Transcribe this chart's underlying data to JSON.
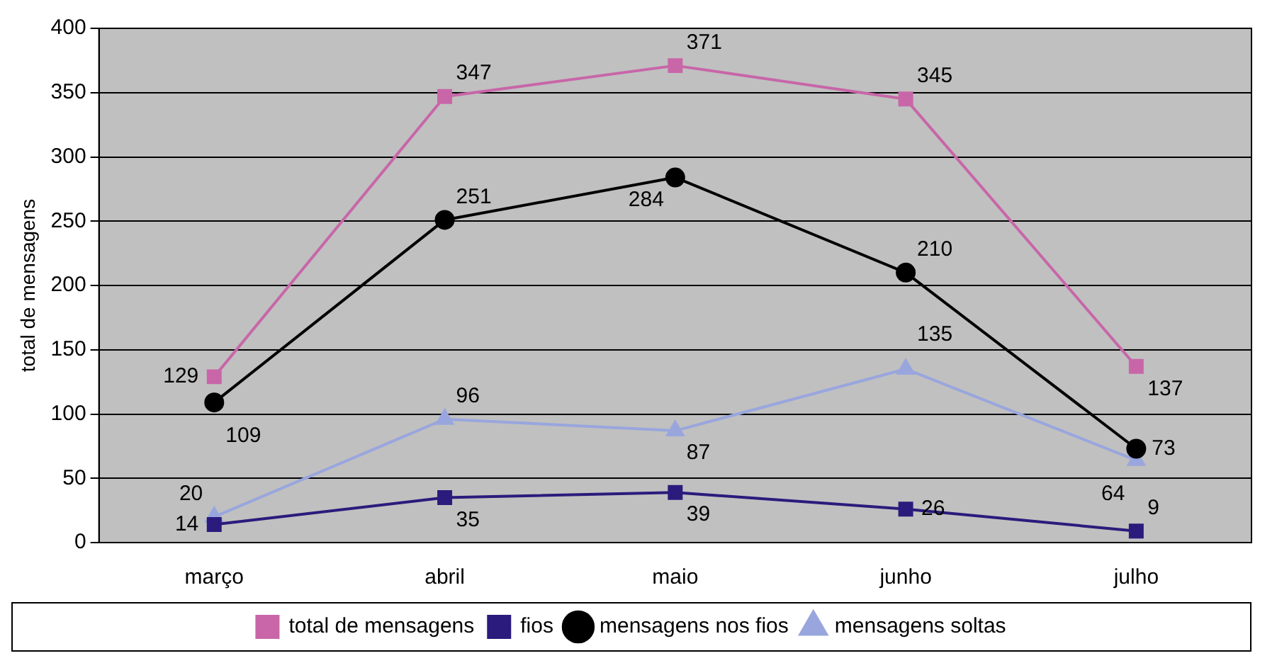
{
  "chart_data": {
    "type": "line",
    "ylabel": "total de mensagens",
    "categories": [
      "março",
      "abril",
      "maio",
      "junho",
      "julho"
    ],
    "series": [
      {
        "name": "total de mensagens",
        "color": "#c866a8",
        "marker": "square",
        "values": [
          129,
          347,
          371,
          345,
          137
        ]
      },
      {
        "name": "fios",
        "color": "#2b1b7c",
        "marker": "square",
        "values": [
          14,
          35,
          39,
          26,
          9
        ]
      },
      {
        "name": "mensagens nos fios",
        "color": "#000000",
        "marker": "circle",
        "values": [
          109,
          251,
          284,
          210,
          73
        ]
      },
      {
        "name": "mensagens soltas",
        "color": "#99a6dd",
        "marker": "triangle",
        "values": [
          20,
          96,
          87,
          135,
          64
        ]
      }
    ],
    "ylim": [
      0,
      400
    ],
    "yticks": [
      0,
      50,
      100,
      150,
      200,
      250,
      300,
      350,
      400
    ],
    "grid": "y",
    "legend": "bottom",
    "data_labels": true,
    "line_style": "solid"
  }
}
